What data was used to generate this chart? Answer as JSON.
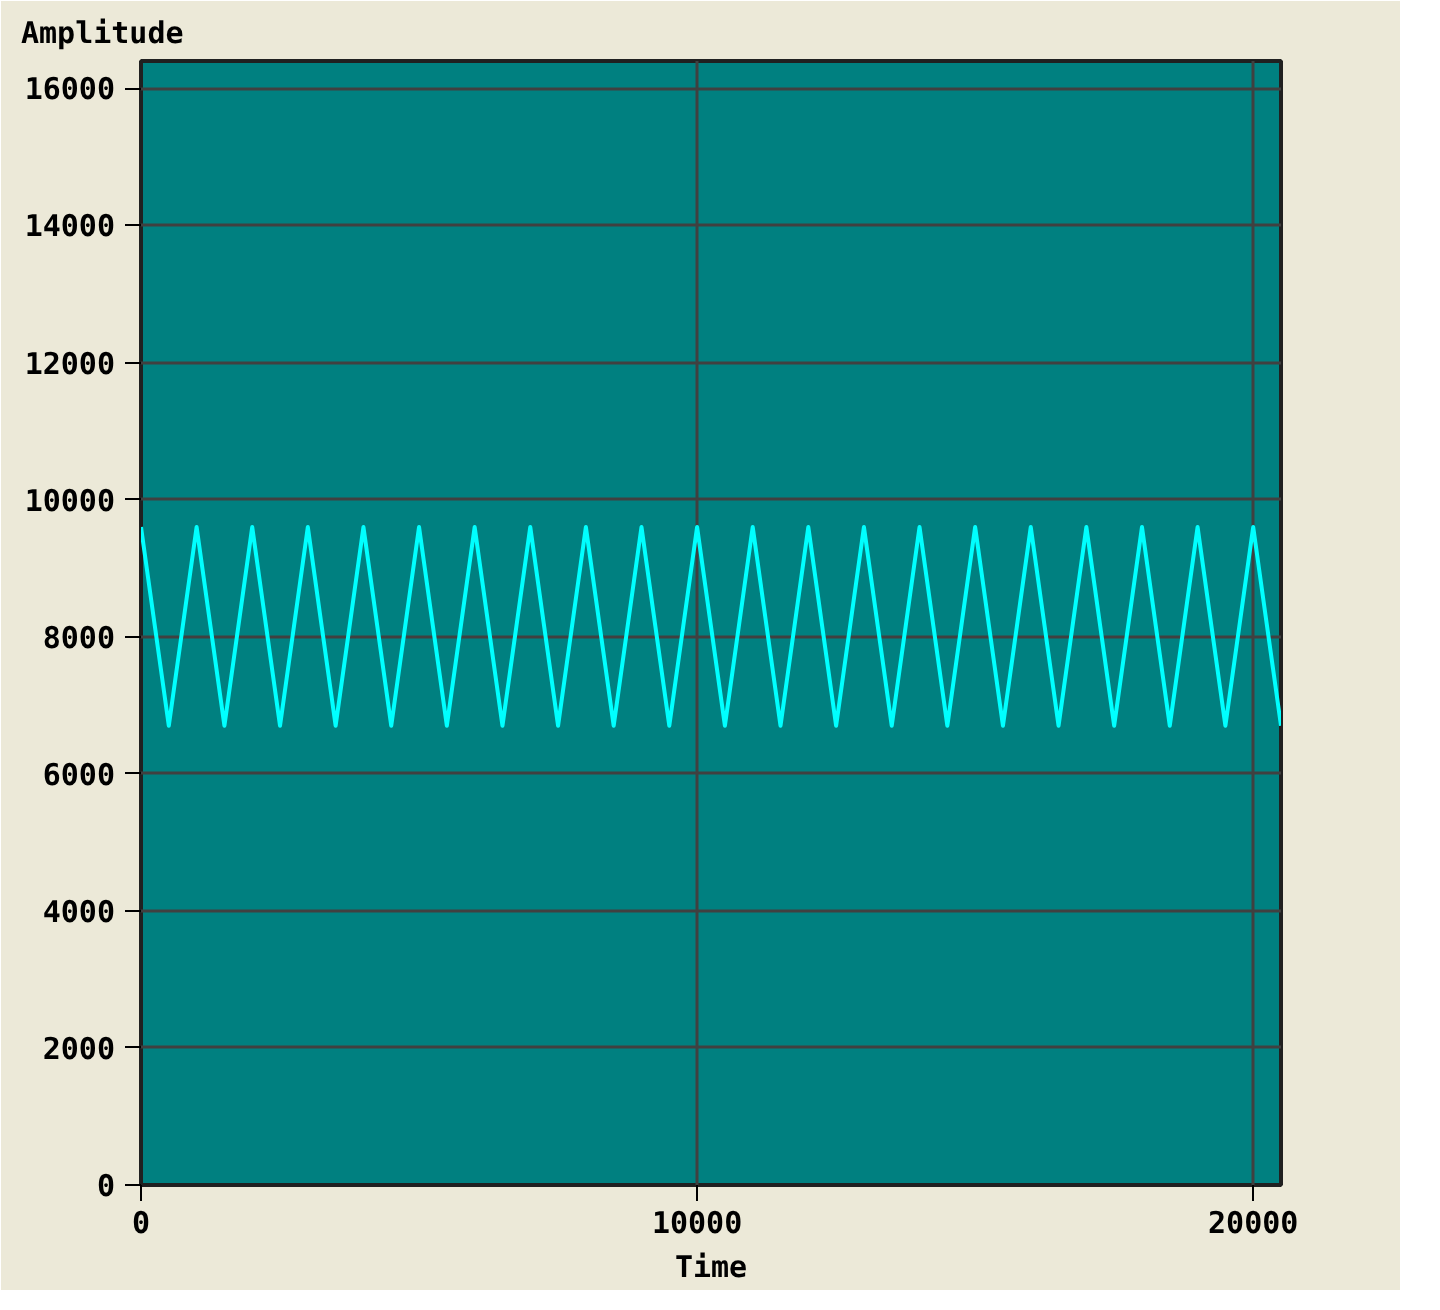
{
  "chart_data": {
    "type": "line",
    "xlabel": "Time",
    "ylabel": "Amplitude",
    "x": [
      0,
      250,
      500,
      750,
      1000,
      1250,
      1500,
      1750,
      2000,
      2250,
      2500,
      2750,
      3000,
      3250,
      3500,
      3750,
      4000,
      4250,
      4500,
      4750,
      5000,
      5250,
      5500,
      5750,
      6000,
      6250,
      6500,
      6750,
      7000,
      7250,
      7500,
      7750,
      8000,
      8250,
      8500,
      8750,
      9000,
      9250,
      9500,
      9750,
      10000,
      10250,
      10500,
      10750,
      11000,
      11250,
      11500,
      11750,
      12000,
      12250,
      12500,
      12750,
      13000,
      13250,
      13500,
      13750,
      14000,
      14250,
      14500,
      14750,
      15000,
      15250,
      15500,
      15750,
      16000,
      16250,
      16500,
      16750,
      17000,
      17250,
      17500,
      17750,
      18000,
      18250,
      18500,
      18750,
      19000,
      19250,
      19500,
      19750,
      20000,
      20250,
      20500
    ],
    "series": [
      {
        "color": "#00ffff",
        "values": [
          9600,
          8150,
          6700,
          8150,
          9600,
          8150,
          6700,
          8150,
          9600,
          8150,
          6700,
          8150,
          9600,
          8150,
          6700,
          8150,
          9600,
          8150,
          6700,
          8150,
          9600,
          8150,
          6700,
          8150,
          9600,
          8150,
          6700,
          8150,
          9600,
          8150,
          6700,
          8150,
          9600,
          8150,
          6700,
          8150,
          9600,
          8150,
          6700,
          8150,
          9600,
          8150,
          6700,
          8150,
          9600,
          8150,
          6700,
          8150,
          9600,
          8150,
          6700,
          8150,
          9600,
          8150,
          6700,
          8150,
          9600,
          8150,
          6700,
          8150,
          9600,
          8150,
          6700,
          8150,
          9600,
          8150,
          6700,
          8150,
          9600,
          8150,
          6700,
          8150,
          9600,
          8150,
          6700,
          8150,
          9600,
          8150,
          6700,
          8150,
          9600,
          8150,
          6700
        ]
      }
    ],
    "xlim": [
      0,
      20500
    ],
    "ylim": [
      0,
      16400
    ],
    "xticks": [
      0,
      10000,
      20000
    ],
    "yticks": [
      0,
      2000,
      4000,
      6000,
      8000,
      10000,
      12000,
      14000,
      16000
    ],
    "grid": true,
    "marker": "none",
    "line_style": "solid"
  }
}
